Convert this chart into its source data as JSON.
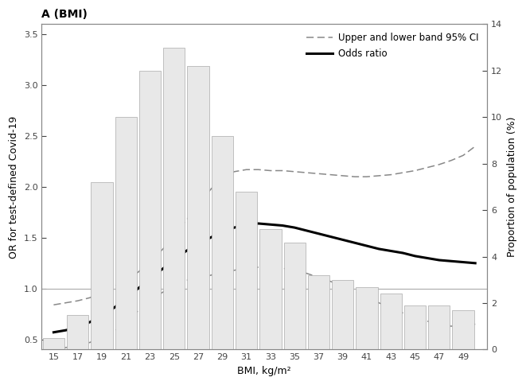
{
  "title": "A (BMI)",
  "xlabel": "BMI, kg/m²",
  "ylabel_left": "OR for test-defined Covid-19",
  "ylabel_right": "Proportion of population (%)",
  "bmi_ticks": [
    15,
    17,
    19,
    21,
    23,
    25,
    27,
    29,
    31,
    33,
    35,
    37,
    39,
    41,
    43,
    45,
    47,
    49
  ],
  "bar_bmi": [
    15,
    17,
    19,
    21,
    23,
    25,
    27,
    29,
    31,
    33,
    35,
    37,
    39,
    41,
    43,
    45,
    47,
    49
  ],
  "bar_heights_pct": [
    0.5,
    1.5,
    7.2,
    10.0,
    12.0,
    13.0,
    12.2,
    9.2,
    6.8,
    5.2,
    4.6,
    3.2,
    3.0,
    2.7,
    2.4,
    1.9,
    1.9,
    1.7
  ],
  "or_bmi": [
    15,
    16,
    17,
    18,
    19,
    20,
    21,
    21.5,
    22,
    23,
    24,
    25,
    26,
    27,
    28,
    29,
    30,
    31,
    32,
    33,
    34,
    35,
    36,
    37,
    38,
    39,
    40,
    41,
    42,
    43,
    44,
    45,
    46,
    47,
    48,
    49,
    50
  ],
  "or_vals": [
    0.57,
    0.59,
    0.62,
    0.67,
    0.73,
    0.81,
    0.9,
    0.95,
    1.0,
    1.1,
    1.19,
    1.28,
    1.37,
    1.44,
    1.5,
    1.56,
    1.6,
    1.63,
    1.64,
    1.63,
    1.62,
    1.6,
    1.57,
    1.54,
    1.51,
    1.48,
    1.45,
    1.42,
    1.39,
    1.37,
    1.35,
    1.32,
    1.3,
    1.28,
    1.27,
    1.26,
    1.25
  ],
  "ci_upper": [
    0.84,
    0.86,
    0.88,
    0.91,
    0.96,
    1.02,
    1.08,
    1.12,
    1.16,
    1.27,
    1.38,
    1.52,
    1.67,
    1.82,
    1.97,
    2.1,
    2.15,
    2.17,
    2.17,
    2.16,
    2.16,
    2.15,
    2.14,
    2.13,
    2.12,
    2.11,
    2.1,
    2.1,
    2.11,
    2.12,
    2.14,
    2.16,
    2.19,
    2.22,
    2.26,
    2.31,
    2.4
  ],
  "ci_lower": [
    0.4,
    0.42,
    0.44,
    0.47,
    0.52,
    0.58,
    0.66,
    0.72,
    0.78,
    0.88,
    0.96,
    1.03,
    1.08,
    1.11,
    1.13,
    1.16,
    1.18,
    1.2,
    1.21,
    1.21,
    1.2,
    1.18,
    1.15,
    1.11,
    1.07,
    1.02,
    0.97,
    0.91,
    0.86,
    0.81,
    0.76,
    0.72,
    0.68,
    0.65,
    0.63,
    0.64,
    0.65
  ],
  "ylim_left": [
    0.4,
    3.6
  ],
  "ylim_right": [
    0,
    14
  ],
  "bar_color": "#e8e8e8",
  "bar_edge_color": "#aaaaaa",
  "or_color": "#000000",
  "ci_color": "#888888",
  "ref_line_color": "#aaaaaa",
  "background_color": "#ffffff",
  "legend_ci_label": "Upper and lower band 95% CI",
  "legend_or_label": "Odds ratio"
}
